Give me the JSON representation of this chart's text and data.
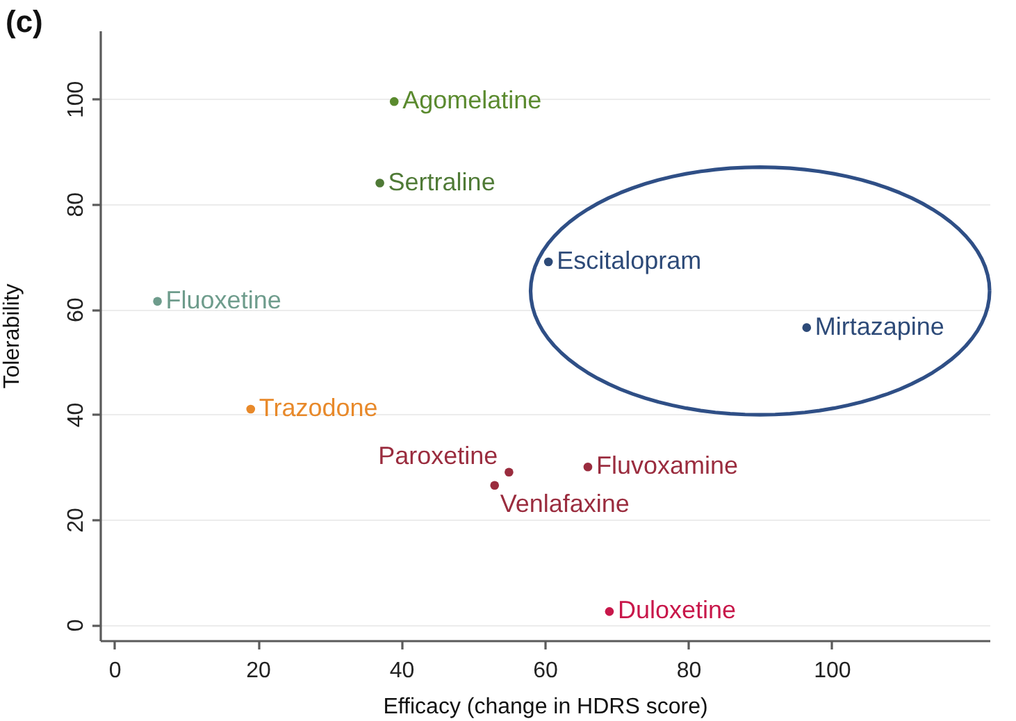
{
  "chart_data": {
    "type": "scatter",
    "title": "(c)",
    "xlabel": "Efficacy (change in HDRS score)",
    "ylabel": "Tolerability",
    "xlim": [
      -2,
      122
    ],
    "ylim": [
      -3,
      113
    ],
    "xticks": [
      0,
      20,
      40,
      60,
      80,
      100
    ],
    "yticks": [
      0,
      20,
      40,
      60,
      80,
      100
    ],
    "grid": "y",
    "marker": "circle",
    "series": [
      {
        "name": "Agomelatine",
        "color": "#5a8a2e",
        "x": [
          39
        ],
        "values": [
          99.5
        ]
      },
      {
        "name": "Sertraline",
        "color": "#4f7a36",
        "x": [
          37
        ],
        "values": [
          84
        ]
      },
      {
        "name": "Fluoxetine",
        "color": "#6e9c8c",
        "x": [
          6
        ],
        "values": [
          61.5
        ]
      },
      {
        "name": "Escitalopram",
        "color": "#2d4a78",
        "x": [
          60.5
        ],
        "values": [
          69
        ]
      },
      {
        "name": "Mirtazapine",
        "color": "#2d4a78",
        "x": [
          96.5
        ],
        "values": [
          56.5
        ]
      },
      {
        "name": "Trazodone",
        "color": "#e8892a",
        "x": [
          19
        ],
        "values": [
          41
        ]
      },
      {
        "name": "Paroxetine",
        "color": "#9a2c3e",
        "x": [
          55
        ],
        "values": [
          29
        ]
      },
      {
        "name": "Venlafaxine",
        "color": "#9a2c3e",
        "x": [
          53
        ],
        "values": [
          26.5
        ]
      },
      {
        "name": "Fluvoxamine",
        "color": "#9a2c3e",
        "x": [
          66
        ],
        "values": [
          30
        ]
      },
      {
        "name": "Duloxetine",
        "color": "#c8174a",
        "x": [
          69
        ],
        "values": [
          2.5
        ]
      }
    ]
  }
}
